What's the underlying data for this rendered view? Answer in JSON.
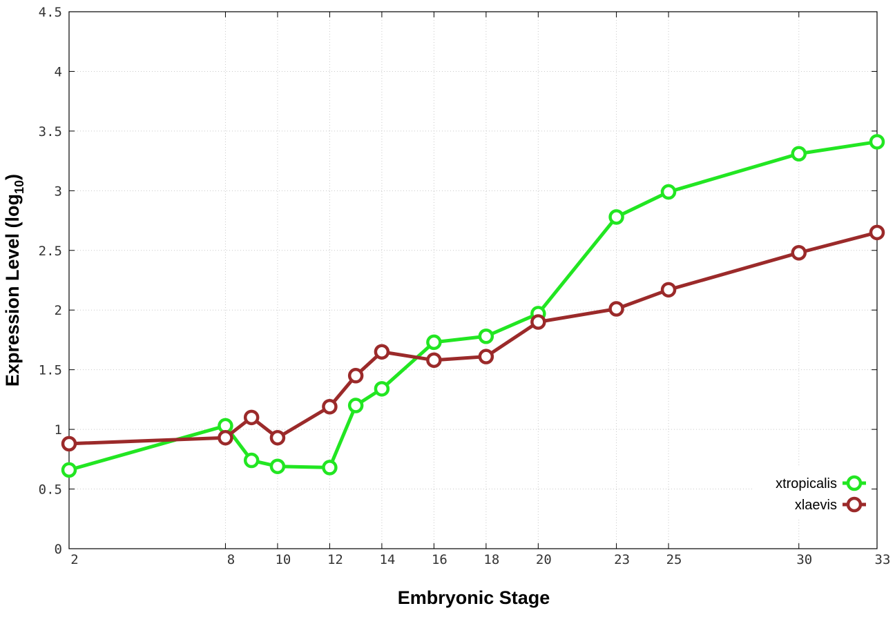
{
  "chart_data": {
    "type": "line",
    "title": "",
    "xlabel": "Embryonic Stage",
    "ylabel": "Expression Level (log",
    "ylabel_sub": "10",
    "ylabel_close": ")",
    "xlim": [
      2,
      33
    ],
    "ylim": [
      0,
      4.5
    ],
    "xticks": [
      2,
      8,
      10,
      12,
      14,
      16,
      18,
      20,
      23,
      25,
      30,
      33
    ],
    "yticks": [
      0,
      0.5,
      1,
      1.5,
      2,
      2.5,
      3,
      3.5,
      4,
      4.5
    ],
    "grid": true,
    "legend_position": "bottom-right",
    "x": [
      2,
      8,
      9,
      10,
      12,
      13,
      14,
      16,
      18,
      20,
      23,
      25,
      30,
      33
    ],
    "series": [
      {
        "name": "xtropicalis",
        "color": "#22e622",
        "values": [
          0.66,
          1.03,
          0.74,
          0.69,
          0.68,
          1.2,
          1.34,
          1.73,
          1.78,
          1.97,
          2.78,
          2.99,
          3.31,
          3.41
        ]
      },
      {
        "name": "xlaevis",
        "color": "#9b2a2a",
        "values": [
          0.88,
          0.93,
          1.1,
          0.93,
          1.19,
          1.45,
          1.65,
          1.58,
          1.61,
          1.9,
          2.01,
          2.17,
          2.48,
          2.65
        ]
      }
    ]
  }
}
